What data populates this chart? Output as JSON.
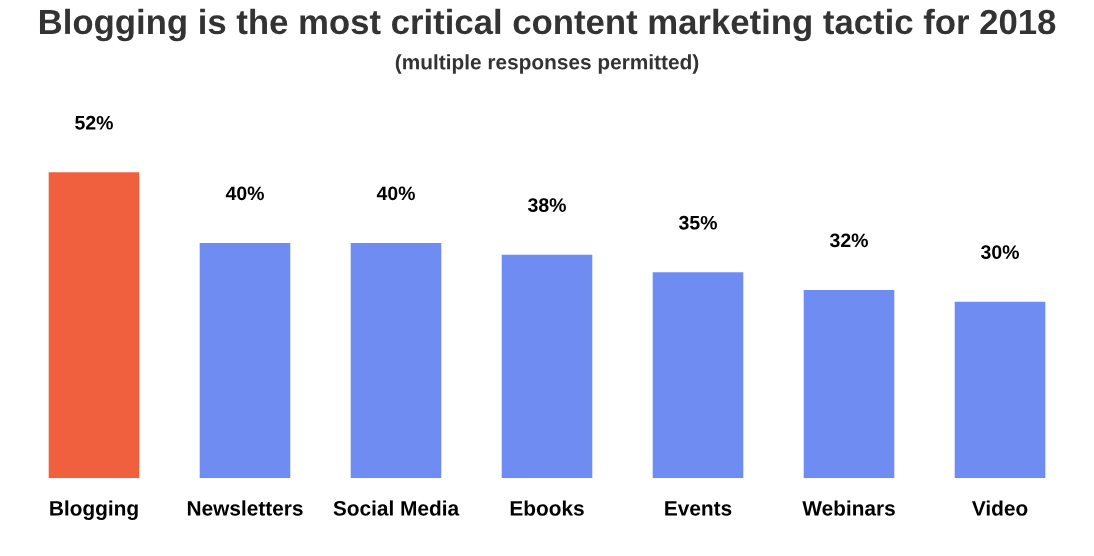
{
  "chart_data": {
    "type": "bar",
    "title": "Blogging is the most critical content marketing tactic for 2018",
    "subtitle": "(multiple responses permitted)",
    "categories": [
      "Blogging",
      "Newsletters",
      "Social Media",
      "Ebooks",
      "Events",
      "Webinars",
      "Video"
    ],
    "values": [
      52,
      40,
      40,
      38,
      35,
      32,
      30
    ],
    "value_labels": [
      "52%",
      "40%",
      "40%",
      "38%",
      "35%",
      "32%",
      "30%"
    ],
    "colors": [
      "#f0603f",
      "#6f8cf2",
      "#6f8cf2",
      "#6f8cf2",
      "#6f8cf2",
      "#6f8cf2",
      "#6f8cf2"
    ],
    "grid": false,
    "legend": false
  }
}
